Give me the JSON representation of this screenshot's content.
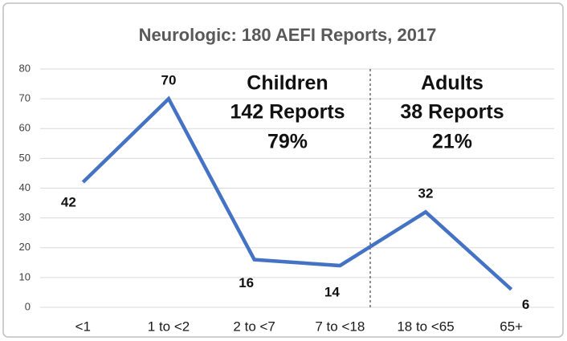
{
  "chart_data": {
    "type": "line",
    "title": "Neurologic: 180 AEFI Reports, 2017",
    "categories": [
      "<1",
      "1 to <2",
      "2 to <7",
      "7 to <18",
      "18 to <65",
      "65+"
    ],
    "series": [
      {
        "name": "Neurologic",
        "color": "#4472c4",
        "values": [
          42,
          70,
          16,
          14,
          32,
          6
        ]
      }
    ],
    "ylim": [
      0,
      80
    ],
    "yticks": [
      0,
      10,
      20,
      30,
      40,
      50,
      60,
      70,
      80
    ],
    "grid": true,
    "annotations": [
      "Children",
      "142 Reports",
      "79%",
      "Adults",
      "38 Reports",
      "21%"
    ]
  }
}
